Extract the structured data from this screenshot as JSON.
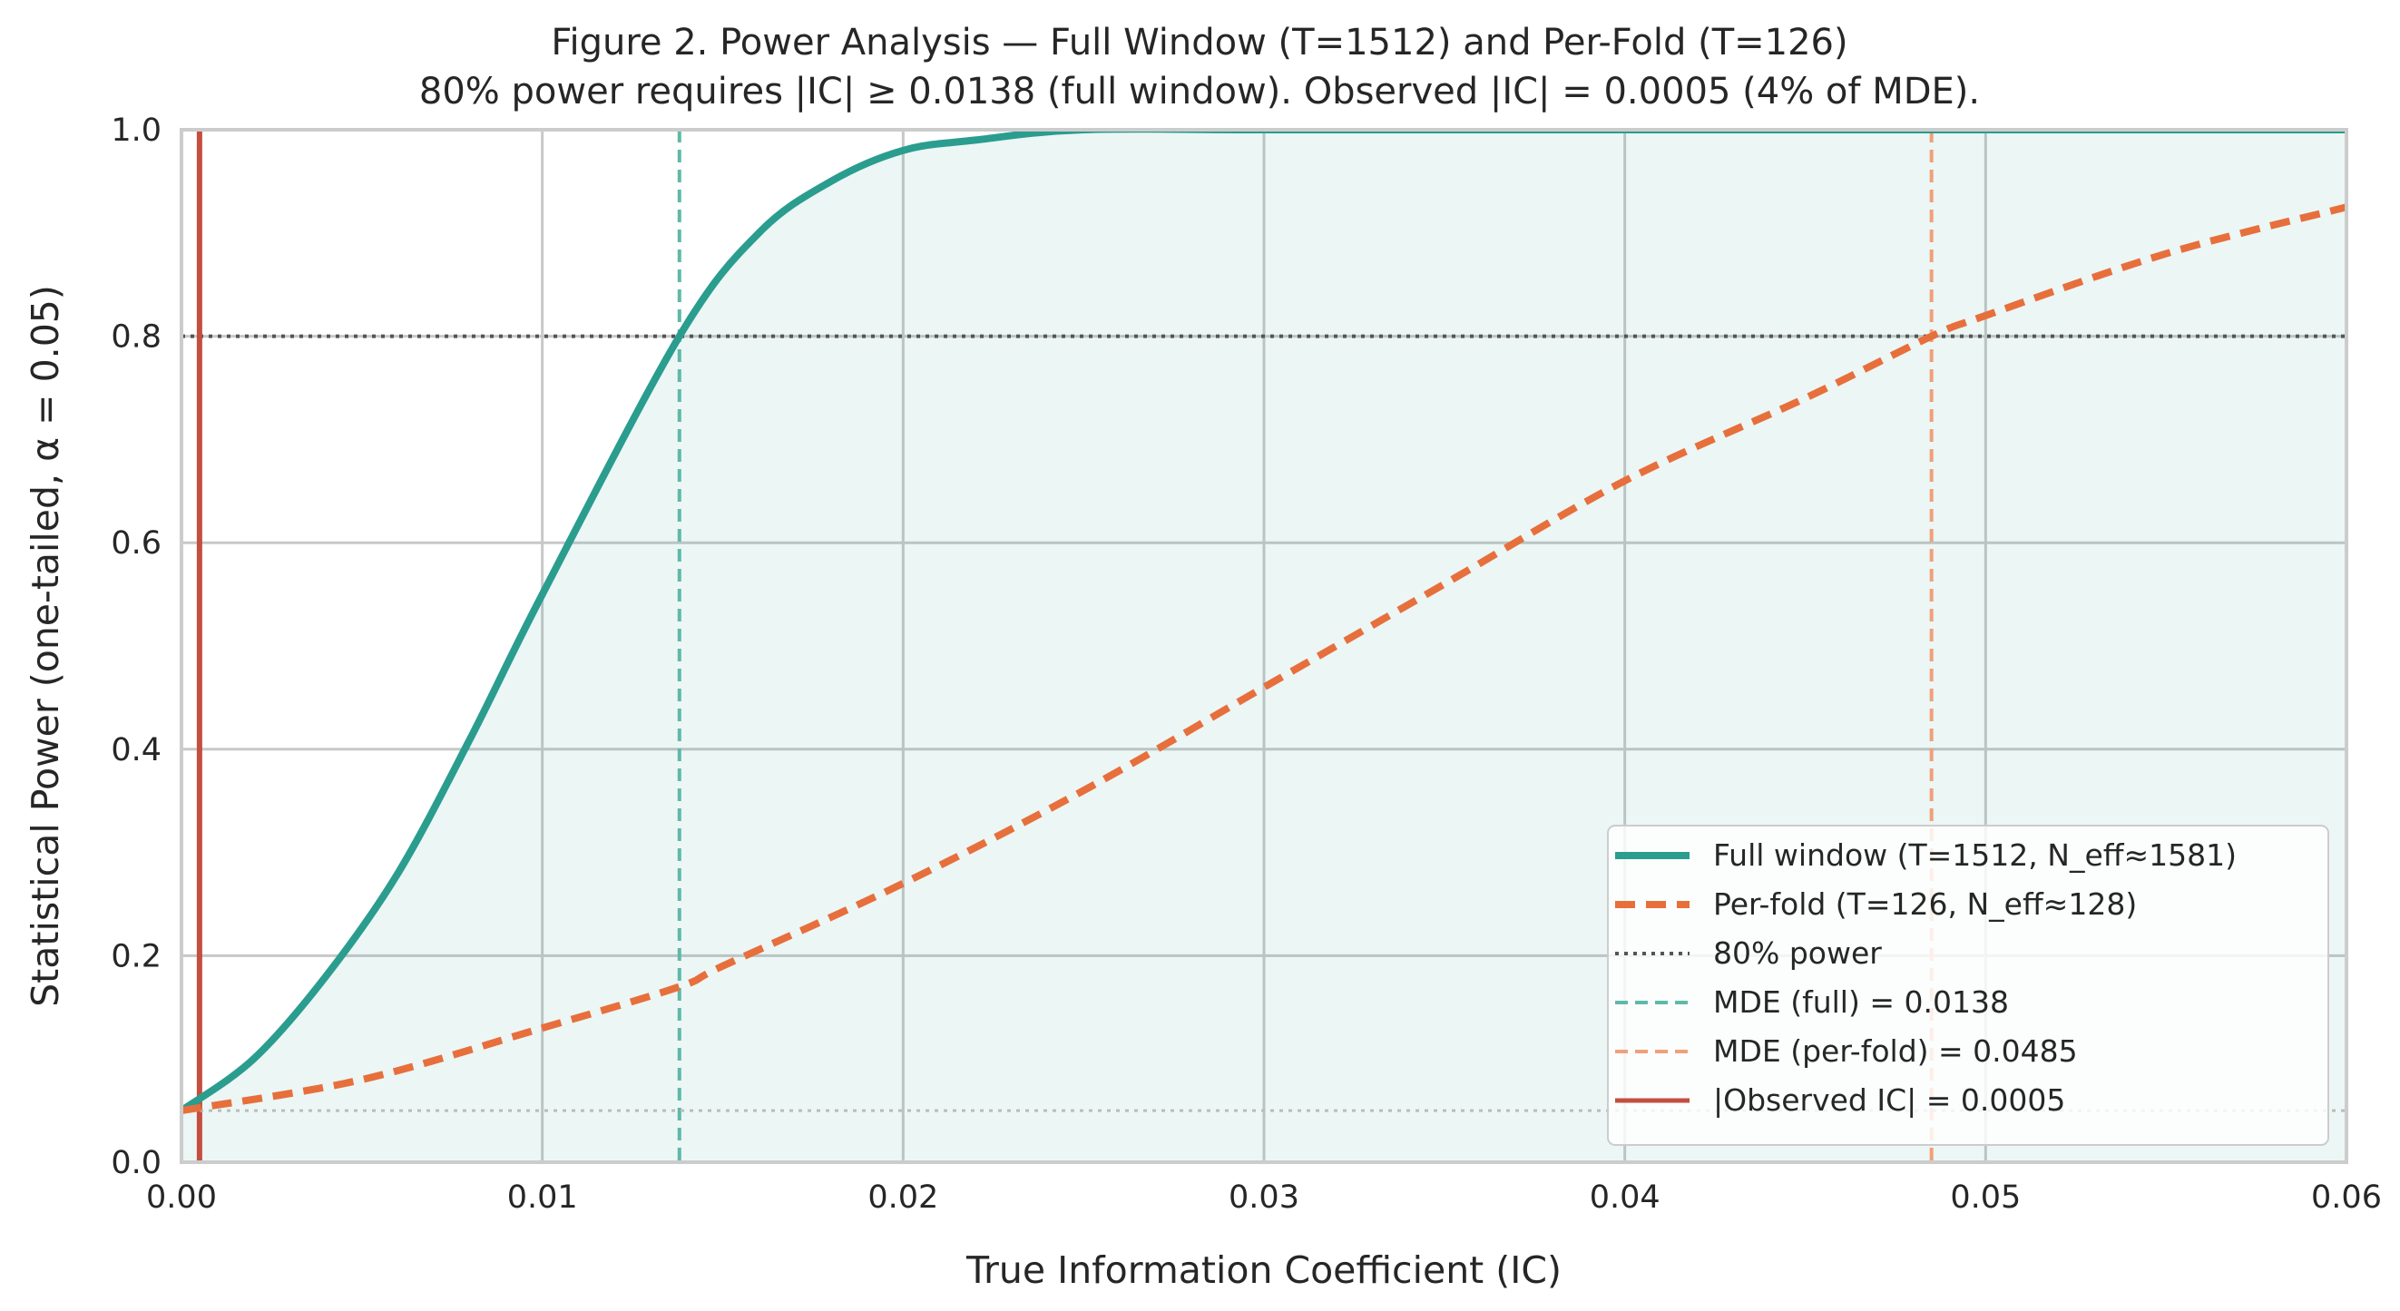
{
  "chart_data": {
    "type": "line",
    "title": "Figure 2. Power Analysis — Full Window (T=1512) and Per-Fold (T=126)",
    "subtitle": "80% power requires |IC| ≥ 0.0138 (full window). Observed |IC| = 0.0005 (4% of MDE).",
    "xlabel": "True Information Coefficient (IC)",
    "ylabel": "Statistical Power (one-tailed, α = 0.05)",
    "xlim": [
      0,
      0.06
    ],
    "ylim": [
      0,
      1.0
    ],
    "x_ticks": [
      "0.00",
      "0.01",
      "0.02",
      "0.03",
      "0.04",
      "0.05",
      "0.06"
    ],
    "y_ticks": [
      "0.0",
      "0.2",
      "0.4",
      "0.6",
      "0.8",
      "1.0"
    ],
    "grid": true,
    "legend_position": "lower-right",
    "series": [
      {
        "name": "Full window (T=1512, N_eff≈1581)",
        "style": "solid",
        "color": "#2a9d8f",
        "x": [
          0,
          0.002,
          0.004,
          0.006,
          0.008,
          0.01,
          0.0138,
          0.016,
          0.018,
          0.02,
          0.022,
          0.025,
          0.03,
          0.04,
          0.05,
          0.06
        ],
        "y": [
          0.05,
          0.1,
          0.18,
          0.28,
          0.41,
          0.55,
          0.8,
          0.9,
          0.95,
          0.98,
          0.99,
          1.0,
          1.0,
          1.0,
          1.0,
          1.0
        ]
      },
      {
        "name": "Per-fold (T=126, N_eff≈128)",
        "style": "dashed",
        "color": "#e76f3c",
        "x": [
          0,
          0.005,
          0.01,
          0.0138,
          0.015,
          0.02,
          0.025,
          0.03,
          0.035,
          0.04,
          0.045,
          0.0485,
          0.05,
          0.055,
          0.06
        ],
        "y": [
          0.05,
          0.08,
          0.13,
          0.17,
          0.19,
          0.27,
          0.36,
          0.46,
          0.56,
          0.66,
          0.74,
          0.8,
          0.82,
          0.88,
          0.925
        ]
      }
    ],
    "reference_lines": [
      {
        "name": "80% power",
        "orientation": "horizontal",
        "value": 0.8,
        "style": "dotted",
        "color": "#555555"
      },
      {
        "name": "MDE (full) = 0.0138",
        "orientation": "vertical",
        "value": 0.0138,
        "style": "dashed",
        "color": "#5fb9a8"
      },
      {
        "name": "MDE (per-fold) = 0.0485",
        "orientation": "vertical",
        "value": 0.0485,
        "style": "dashed",
        "color": "#f0a07a"
      },
      {
        "name": "|Observed IC| = 0.0005",
        "orientation": "vertical",
        "value": 0.0005,
        "style": "solid",
        "color": "#c44e3f"
      },
      {
        "name": "",
        "orientation": "horizontal",
        "value": 0.05,
        "style": "dotted",
        "color": "#bbbbbb"
      }
    ]
  }
}
